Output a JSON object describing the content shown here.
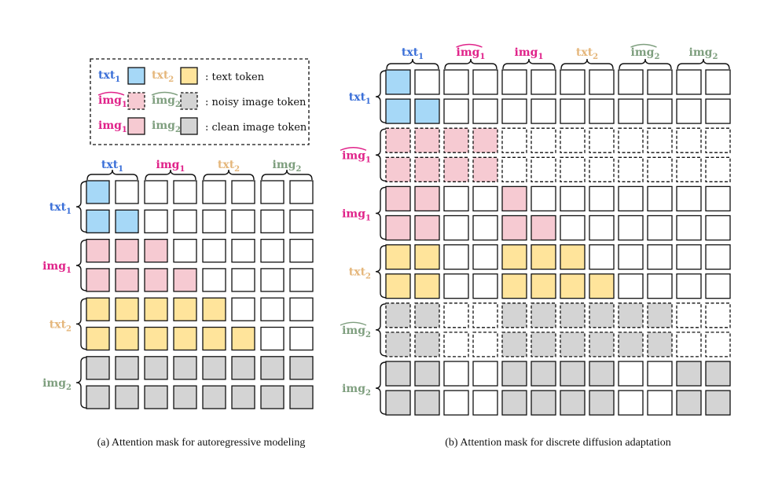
{
  "colors": {
    "txt1": "#a6d8f7",
    "txt2": "#ffe49b",
    "img1": "#f6cad2",
    "img2": "#d4d4d4",
    "label_txt1": "#3a6fd8",
    "label_txt2": "#e5b77c",
    "label_img1": "#e0238a",
    "label_img2": "#7f9f7f"
  },
  "legend": {
    "rows": [
      {
        "a": {
          "base": "txt",
          "sub": "1",
          "tilde": false,
          "color_key": "label_txt1"
        },
        "b": {
          "base": "txt",
          "sub": "2",
          "tilde": false,
          "color_key": "label_txt2"
        },
        "sw_a": "txt1",
        "sw_b": "txt2",
        "dashed": false,
        "text": ": text token"
      },
      {
        "a": {
          "base": "img",
          "sub": "1",
          "tilde": true,
          "color_key": "label_img1"
        },
        "b": {
          "base": "img",
          "sub": "2",
          "tilde": true,
          "color_key": "label_img2"
        },
        "sw_a": "img1",
        "sw_b": "img2",
        "dashed": true,
        "text": ": noisy image token"
      },
      {
        "a": {
          "base": "img",
          "sub": "1",
          "tilde": false,
          "color_key": "label_img1"
        },
        "b": {
          "base": "img",
          "sub": "2",
          "tilde": false,
          "color_key": "label_img2"
        },
        "sw_a": "img1",
        "sw_b": "img2",
        "dashed": false,
        "text": ": clean image token"
      }
    ]
  },
  "panel_a": {
    "caption": "(a) Attention mask for autoregressive modeling",
    "groups": [
      {
        "base": "txt",
        "sub": "1",
        "tilde": false,
        "color_key": "label_txt1",
        "fill": "txt1",
        "dashed": false
      },
      {
        "base": "img",
        "sub": "1",
        "tilde": false,
        "color_key": "label_img1",
        "fill": "img1",
        "dashed": false
      },
      {
        "base": "txt",
        "sub": "2",
        "tilde": false,
        "color_key": "label_txt2",
        "fill": "txt2",
        "dashed": false
      },
      {
        "base": "img",
        "sub": "2",
        "tilde": false,
        "color_key": "label_img2",
        "fill": "img2",
        "dashed": false
      }
    ],
    "mask": [
      "10000000",
      "11000000",
      "11100000",
      "11110000",
      "11111000",
      "11111100",
      "11111111",
      "11111111"
    ]
  },
  "panel_b": {
    "caption": "(b) Attention mask for discrete diffusion adaptation",
    "groups": [
      {
        "base": "txt",
        "sub": "1",
        "tilde": false,
        "color_key": "label_txt1",
        "fill": "txt1",
        "dashed": false
      },
      {
        "base": "img",
        "sub": "1",
        "tilde": true,
        "color_key": "label_img1",
        "fill": "img1",
        "dashed": true
      },
      {
        "base": "img",
        "sub": "1",
        "tilde": false,
        "color_key": "label_img1",
        "fill": "img1",
        "dashed": false
      },
      {
        "base": "txt",
        "sub": "2",
        "tilde": false,
        "color_key": "label_txt2",
        "fill": "txt2",
        "dashed": false
      },
      {
        "base": "img",
        "sub": "2",
        "tilde": true,
        "color_key": "label_img2",
        "fill": "img2",
        "dashed": true
      },
      {
        "base": "img",
        "sub": "2",
        "tilde": false,
        "color_key": "label_img2",
        "fill": "img2",
        "dashed": false
      }
    ],
    "mask": [
      "100000000000",
      "110000000000",
      "111100000000",
      "111100000000",
      "110010000000",
      "110011000000",
      "110011100000",
      "110011110000",
      "110011111100",
      "110011111100",
      "110011110011",
      "110011110011"
    ]
  }
}
